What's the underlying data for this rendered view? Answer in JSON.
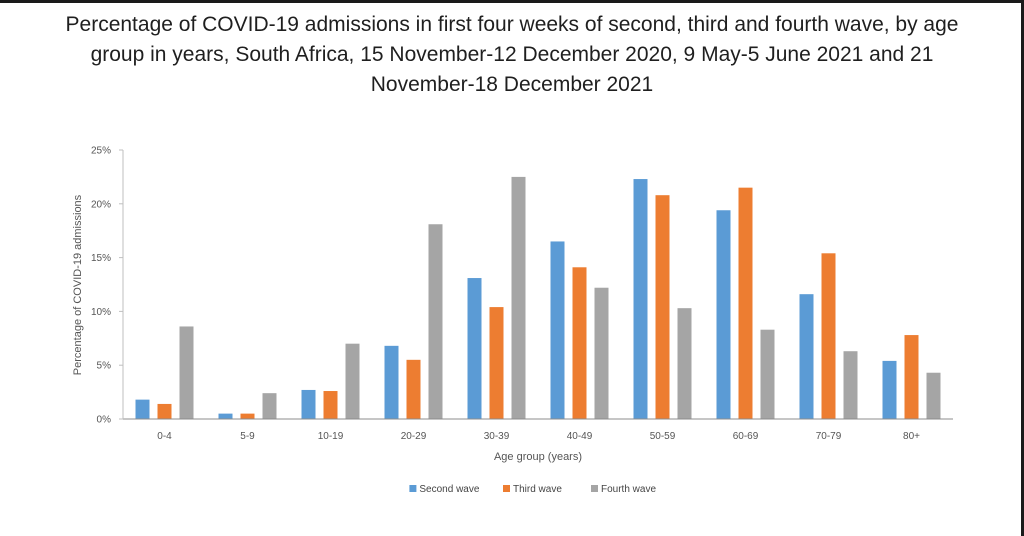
{
  "chart_data": {
    "type": "bar",
    "title": "Percentage of COVID-19 admissions in first four weeks of second, third and fourth wave, by age group in years, South Africa, 15 November-12 December 2020, 9 May-5 June 2021 and 21 November-18 December 2021",
    "xlabel": "Age group (years)",
    "ylabel": "Percentage of COVID-19 admissions",
    "ylim": [
      0,
      25
    ],
    "yticks": [
      0,
      5,
      10,
      15,
      20,
      25
    ],
    "ytick_suffix": "%",
    "grid": false,
    "legend_position": "bottom",
    "categories": [
      "0-4",
      "5-9",
      "10-19",
      "20-29",
      "30-39",
      "40-49",
      "50-59",
      "60-69",
      "70-79",
      "80+"
    ],
    "series": [
      {
        "name": "Second wave",
        "color": "#5B9BD5",
        "values": [
          1.8,
          0.5,
          2.7,
          6.8,
          13.1,
          16.5,
          22.3,
          19.4,
          11.6,
          5.4
        ]
      },
      {
        "name": "Third wave",
        "color": "#ED7D31",
        "values": [
          1.4,
          0.5,
          2.6,
          5.5,
          10.4,
          14.1,
          20.8,
          21.5,
          15.4,
          7.8
        ]
      },
      {
        "name": "Fourth wave",
        "color": "#A5A5A5",
        "values": [
          8.6,
          2.4,
          7.0,
          18.1,
          22.5,
          12.2,
          10.3,
          8.3,
          6.3,
          4.3
        ]
      }
    ]
  }
}
